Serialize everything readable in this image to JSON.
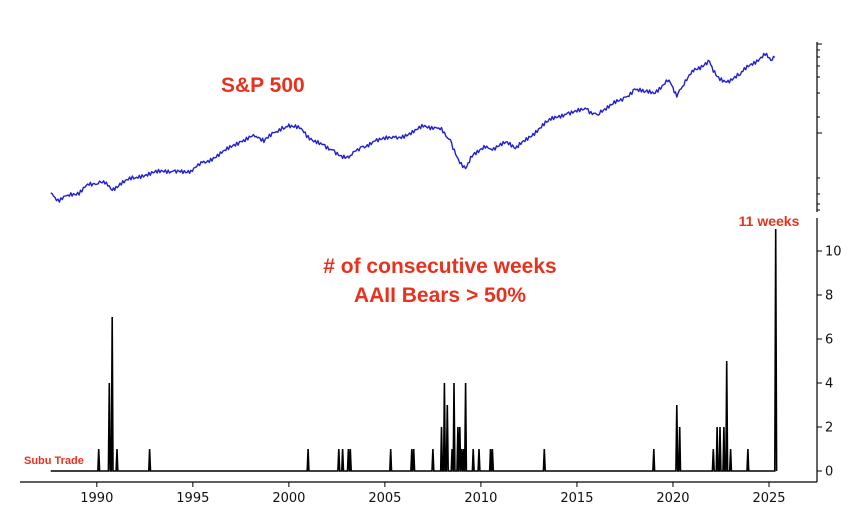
{
  "colors": {
    "sp500_line": "#1f1fd6",
    "bears_line": "#000000",
    "annotation": "#e8321e",
    "axis": "#000000"
  },
  "annotations": {
    "sp500_title": "S&P 500",
    "bears_title_line1": "# of consecutive weeks",
    "bears_title_line2": "AAII Bears > 50%",
    "peak_label": "11 weeks",
    "source_label": "Subu Trade"
  },
  "chart_data": [
    {
      "type": "line",
      "series": [
        {
          "name": "S&P 500",
          "x": [
            1987.6,
            1987.9,
            1988.5,
            1989.0,
            1989.6,
            1990.0,
            1990.5,
            1990.8,
            1991.2,
            1992.0,
            1993.0,
            1994.0,
            1994.9,
            1995.5,
            1996.5,
            1997.5,
            1998.3,
            1998.7,
            1999.2,
            1999.8,
            2000.2,
            2000.7,
            2001.3,
            2001.8,
            2002.3,
            2002.8,
            2003.2,
            2003.8,
            2004.5,
            2005.5,
            2006.5,
            2007.0,
            2007.8,
            2008.4,
            2008.9,
            2009.2,
            2009.6,
            2010.3,
            2010.6,
            2011.3,
            2011.8,
            2012.5,
            2013.5,
            2014.5,
            2015.5,
            2016.1,
            2016.8,
            2017.5,
            2018.0,
            2018.5,
            2019.0,
            2019.8,
            2020.2,
            2020.5,
            2021.0,
            2021.9,
            2022.3,
            2022.8,
            2023.5,
            2024.0,
            2024.8,
            2025.1,
            2025.3
          ],
          "values": [
            -0.93,
            -1.08,
            -0.97,
            -0.92,
            -0.78,
            -0.76,
            -0.72,
            -0.88,
            -0.74,
            -0.64,
            -0.53,
            -0.5,
            -0.49,
            -0.34,
            -0.16,
            0.07,
            0.17,
            0.05,
            0.24,
            0.33,
            0.36,
            0.3,
            0.06,
            0.01,
            -0.09,
            -0.26,
            -0.2,
            -0.03,
            0.08,
            0.15,
            0.24,
            0.35,
            0.33,
            0.11,
            -0.36,
            -0.46,
            -0.19,
            -0.02,
            -0.1,
            0.06,
            -0.07,
            0.17,
            0.46,
            0.62,
            0.7,
            0.58,
            0.78,
            0.93,
            1.09,
            1.02,
            1.0,
            1.26,
            0.93,
            1.14,
            1.45,
            1.63,
            1.33,
            1.22,
            1.36,
            1.55,
            1.74,
            1.64,
            1.7
          ]
        }
      ],
      "xlim": [
        1986.0,
        2027.5
      ],
      "ylim": [
        -1.3,
        2.0
      ],
      "x_tick_labels": [],
      "y_tick_labels": [],
      "grid": false,
      "title": ""
    },
    {
      "type": "line",
      "series": [
        {
          "name": "# of consecutive weeks AAII Bears > 50%",
          "spikes": [
            {
              "x": 1990.1,
              "y": 1
            },
            {
              "x": 1990.65,
              "y": 4
            },
            {
              "x": 1990.8,
              "y": 7
            },
            {
              "x": 1991.05,
              "y": 1
            },
            {
              "x": 1992.75,
              "y": 1
            },
            {
              "x": 2001.0,
              "y": 1
            },
            {
              "x": 2002.6,
              "y": 1
            },
            {
              "x": 2002.8,
              "y": 1
            },
            {
              "x": 2003.1,
              "y": 1
            },
            {
              "x": 2003.2,
              "y": 1
            },
            {
              "x": 2005.3,
              "y": 1
            },
            {
              "x": 2006.4,
              "y": 1
            },
            {
              "x": 2006.5,
              "y": 1
            },
            {
              "x": 2007.5,
              "y": 1
            },
            {
              "x": 2007.95,
              "y": 2
            },
            {
              "x": 2008.1,
              "y": 4
            },
            {
              "x": 2008.25,
              "y": 3
            },
            {
              "x": 2008.5,
              "y": 1
            },
            {
              "x": 2008.6,
              "y": 4
            },
            {
              "x": 2008.8,
              "y": 2
            },
            {
              "x": 2008.9,
              "y": 2
            },
            {
              "x": 2009.0,
              "y": 1
            },
            {
              "x": 2009.1,
              "y": 1
            },
            {
              "x": 2009.2,
              "y": 4
            },
            {
              "x": 2009.6,
              "y": 1
            },
            {
              "x": 2009.9,
              "y": 1
            },
            {
              "x": 2010.5,
              "y": 1
            },
            {
              "x": 2010.6,
              "y": 1
            },
            {
              "x": 2013.3,
              "y": 1
            },
            {
              "x": 2019.0,
              "y": 1
            },
            {
              "x": 2020.2,
              "y": 3
            },
            {
              "x": 2020.35,
              "y": 2
            },
            {
              "x": 2022.1,
              "y": 1
            },
            {
              "x": 2022.3,
              "y": 2
            },
            {
              "x": 2022.45,
              "y": 2
            },
            {
              "x": 2022.65,
              "y": 2
            },
            {
              "x": 2022.8,
              "y": 5
            },
            {
              "x": 2023.0,
              "y": 1
            },
            {
              "x": 2023.9,
              "y": 1
            },
            {
              "x": 2025.35,
              "y": 11
            }
          ]
        }
      ],
      "xlim": [
        1986.0,
        2027.5
      ],
      "ylim": [
        -0.5,
        11.5
      ],
      "x_ticks": [
        1990,
        1995,
        2000,
        2005,
        2010,
        2015,
        2020,
        2025
      ],
      "x_tick_labels": [
        "1990",
        "1995",
        "2000",
        "2005",
        "2010",
        "2015",
        "2020",
        "2025"
      ],
      "y_ticks": [
        0,
        2,
        4,
        6,
        8,
        10
      ],
      "y_tick_labels": [
        "0",
        "2",
        "4",
        "6",
        "8",
        "10"
      ],
      "grid": false,
      "title": ""
    }
  ]
}
